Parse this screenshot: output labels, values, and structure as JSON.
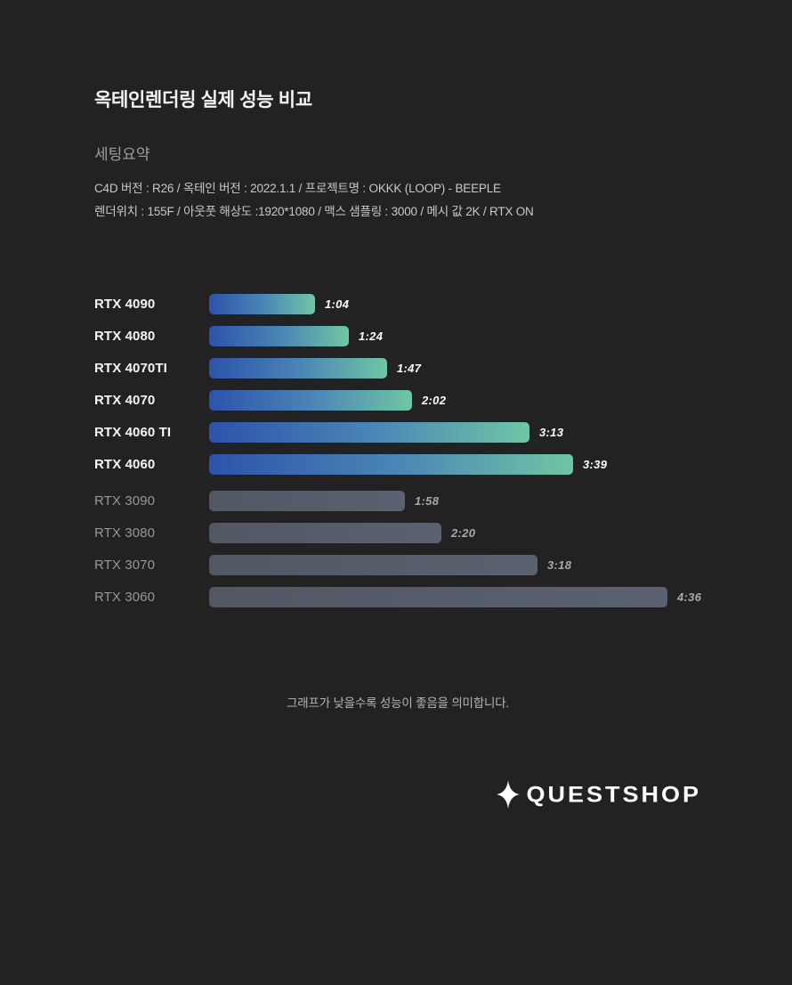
{
  "page_bg": "#222222",
  "header": {
    "title": "옥테인렌더링 실제 성능 비교",
    "subtitle": "세팅요약",
    "settings_line1": "C4D 버전 : R26 / 옥테인 버전 : 2022.1.1 / 프로젝트명 : OKKK (LOOP) - BEEPLE",
    "settings_line2": "렌더위치 : 155F / 아웃풋 해상도 :1920*1080 / 맥스 샘플링 : 3000 / 메시 값 2K / RTX ON"
  },
  "chart_data": {
    "type": "bar",
    "orientation": "horizontal",
    "title": "옥테인렌더링 실제 성능 비교",
    "value_meaning": "render time (min:sec), lower is better",
    "x_range_seconds": [
      0,
      276
    ],
    "grid": false,
    "legend": "none",
    "rows": [
      {
        "label": "RTX 4090",
        "time": "1:04",
        "seconds": 64,
        "group": "rtx40"
      },
      {
        "label": "RTX 4080",
        "time": "1:24",
        "seconds": 84,
        "group": "rtx40"
      },
      {
        "label": "RTX 4070TI",
        "time": "1:47",
        "seconds": 107,
        "group": "rtx40"
      },
      {
        "label": "RTX 4070",
        "time": "2:02",
        "seconds": 122,
        "group": "rtx40"
      },
      {
        "label": "RTX 4060 TI",
        "time": "3:13",
        "seconds": 193,
        "group": "rtx40"
      },
      {
        "label": "RTX 4060",
        "time": "3:39",
        "seconds": 219,
        "group": "rtx40"
      },
      {
        "label": "RTX 3090",
        "time": "1:58",
        "seconds": 118,
        "group": "rtx30"
      },
      {
        "label": "RTX 3080",
        "time": "2:20",
        "seconds": 140,
        "group": "rtx30"
      },
      {
        "label": "RTX 3070",
        "time": "3:18",
        "seconds": 198,
        "group": "rtx30"
      },
      {
        "label": "RTX 3060",
        "time": "4:36",
        "seconds": 276,
        "group": "rtx30"
      }
    ],
    "colors": {
      "rtx40_gradient_start": "#2c53ab",
      "rtx40_gradient_mid": "#4b86b6",
      "rtx40_gradient_end": "#6fc6a4",
      "rtx30_bar": "#565c69"
    }
  },
  "footer": {
    "note": "그래프가 낮을수록 성능이 좋음을 의미합니다.",
    "logo_text": "QUESTSHOP"
  }
}
